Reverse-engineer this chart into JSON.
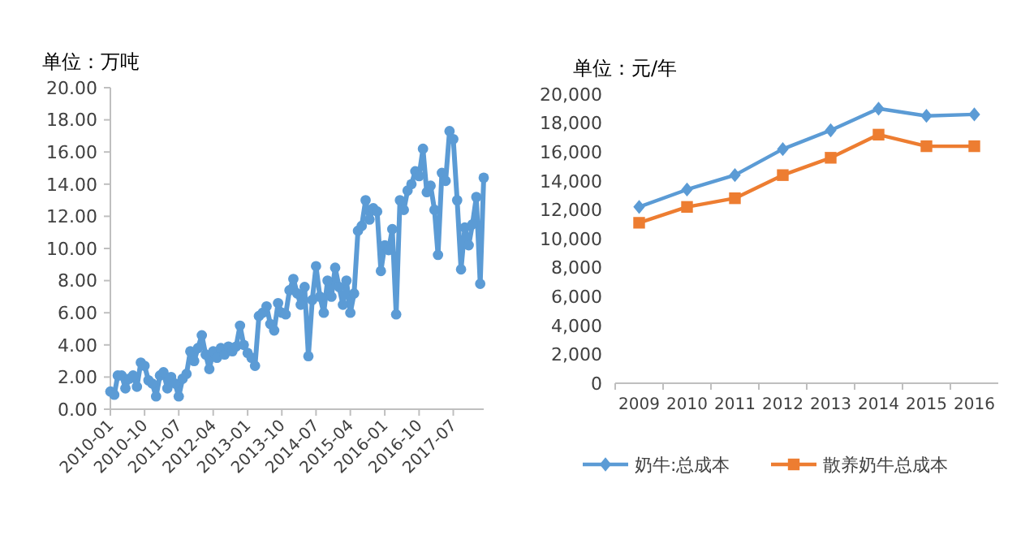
{
  "chart_data": [
    {
      "type": "line",
      "ylabel": "单位：万吨",
      "x": [
        "2010-01",
        "2010-02",
        "2010-03",
        "2010-04",
        "2010-05",
        "2010-06",
        "2010-07",
        "2010-08",
        "2010-09",
        "2010-10",
        "2010-11",
        "2010-12",
        "2011-01",
        "2011-02",
        "2011-03",
        "2011-04",
        "2011-05",
        "2011-06",
        "2011-07",
        "2011-08",
        "2011-09",
        "2011-10",
        "2011-11",
        "2011-12",
        "2012-01",
        "2012-02",
        "2012-03",
        "2012-04",
        "2012-05",
        "2012-06",
        "2012-07",
        "2012-08",
        "2012-09",
        "2012-10",
        "2012-11",
        "2012-12",
        "2013-01",
        "2013-02",
        "2013-03",
        "2013-04",
        "2013-05",
        "2013-06",
        "2013-07",
        "2013-08",
        "2013-09",
        "2013-10",
        "2013-11",
        "2013-12",
        "2014-01",
        "2014-02",
        "2014-03",
        "2014-04",
        "2014-05",
        "2014-06",
        "2014-07",
        "2014-08",
        "2014-09",
        "2014-10",
        "2014-11",
        "2014-12",
        "2015-01",
        "2015-02",
        "2015-03",
        "2015-04",
        "2015-05",
        "2015-06",
        "2015-07",
        "2015-08",
        "2015-09",
        "2015-10",
        "2015-11",
        "2015-12",
        "2016-01",
        "2016-02",
        "2016-03",
        "2016-04",
        "2016-05",
        "2016-06",
        "2016-07",
        "2016-08",
        "2016-09",
        "2016-10",
        "2016-11",
        "2016-12",
        "2017-01",
        "2017-02",
        "2017-03",
        "2017-04",
        "2017-05",
        "2017-06",
        "2017-07",
        "2017-08",
        "2017-09",
        "2017-10",
        "2017-11",
        "2017-12",
        "2018-01",
        "2018-02",
        "2018-03"
      ],
      "series": [
        {
          "color": "#5b9bd5",
          "values": [
            1.1,
            0.9,
            2.1,
            2.1,
            1.3,
            1.9,
            2.1,
            1.4,
            2.9,
            2.7,
            1.8,
            1.6,
            0.8,
            2.1,
            2.3,
            1.3,
            2.0,
            1.6,
            0.8,
            1.9,
            2.2,
            3.6,
            3.0,
            3.8,
            4.6,
            3.4,
            2.5,
            3.6,
            3.2,
            3.8,
            3.4,
            3.9,
            3.6,
            3.9,
            5.2,
            4.0,
            3.5,
            3.2,
            2.7,
            5.8,
            6.0,
            6.4,
            5.3,
            4.9,
            6.6,
            6.0,
            5.9,
            7.4,
            8.1,
            7.2,
            6.5,
            7.6,
            3.3,
            6.8,
            8.9,
            7.0,
            6.0,
            8.0,
            7.0,
            8.8,
            7.6,
            6.5,
            8.0,
            6.0,
            7.2,
            11.1,
            11.4,
            13.0,
            11.8,
            12.5,
            12.3,
            8.6,
            10.2,
            9.9,
            11.2,
            5.9,
            13.0,
            12.4,
            13.6,
            14.0,
            14.8,
            14.5,
            16.2,
            13.5,
            13.9,
            12.4,
            9.6,
            14.7,
            14.2,
            17.3,
            16.8,
            13.0,
            8.7,
            11.3,
            10.2,
            11.5,
            13.2,
            7.8,
            14.4
          ]
        }
      ],
      "marker": "circle",
      "xlim": [
        "2010-01",
        "2018-03"
      ],
      "xticks": [
        {
          "value": "2010-01",
          "label": "2010-01"
        },
        {
          "value": "2010-10",
          "label": "2010-10"
        },
        {
          "value": "2011-07",
          "label": "2011-07"
        },
        {
          "value": "2012-04",
          "label": "2012-04"
        },
        {
          "value": "2013-01",
          "label": "2013-01"
        },
        {
          "value": "2013-10",
          "label": "2013-10"
        },
        {
          "value": "2014-07",
          "label": "2014-07"
        },
        {
          "value": "2015-04",
          "label": "2015-04"
        },
        {
          "value": "2016-01",
          "label": "2016-01"
        },
        {
          "value": "2016-10",
          "label": "2016-10"
        },
        {
          "value": "2017-07",
          "label": "2017-07"
        }
      ],
      "ylim": [
        0,
        20
      ],
      "yticks": [
        {
          "value": 0,
          "label": "0.00"
        },
        {
          "value": 2,
          "label": "2.00"
        },
        {
          "value": 4,
          "label": "4.00"
        },
        {
          "value": 6,
          "label": "6.00"
        },
        {
          "value": 8,
          "label": "8.00"
        },
        {
          "value": 10,
          "label": "10.00"
        },
        {
          "value": 12,
          "label": "12.00"
        },
        {
          "value": 14,
          "label": "14.00"
        },
        {
          "value": 16,
          "label": "16.00"
        },
        {
          "value": 18,
          "label": "18.00"
        },
        {
          "value": 20,
          "label": "20.00"
        }
      ],
      "grid": false,
      "legend": false
    },
    {
      "type": "line",
      "ylabel": "单位：元/年",
      "categories": [
        "2009",
        "2010",
        "2011",
        "2012",
        "2013",
        "2014",
        "2015",
        "2016"
      ],
      "series": [
        {
          "name": "奶牛:总成本",
          "color": "#5b9bd5",
          "marker": "diamond",
          "values": [
            12200,
            13400,
            14400,
            16200,
            17500,
            19000,
            18500,
            18600
          ]
        },
        {
          "name": "散养奶牛总成本",
          "color": "#ed7d31",
          "marker": "square",
          "values": [
            11100,
            12200,
            12800,
            14400,
            15600,
            17200,
            16400,
            16400
          ]
        }
      ],
      "ylim": [
        0,
        20000
      ],
      "yticks": [
        0,
        {
          "value": 2000,
          "label": "2,000"
        },
        {
          "value": 4000,
          "label": "4,000"
        },
        {
          "value": 6000,
          "label": "6,000"
        },
        {
          "value": 8000,
          "label": "8,000"
        },
        {
          "value": 10000,
          "label": "10,000"
        },
        {
          "value": 12000,
          "label": "12,000"
        },
        {
          "value": 14000,
          "label": "14,000"
        },
        {
          "value": 16000,
          "label": "16,000"
        },
        {
          "value": 18000,
          "label": "18,000"
        },
        {
          "value": 20000,
          "label": "20,000"
        }
      ],
      "grid": false,
      "legend": "bottom"
    }
  ]
}
